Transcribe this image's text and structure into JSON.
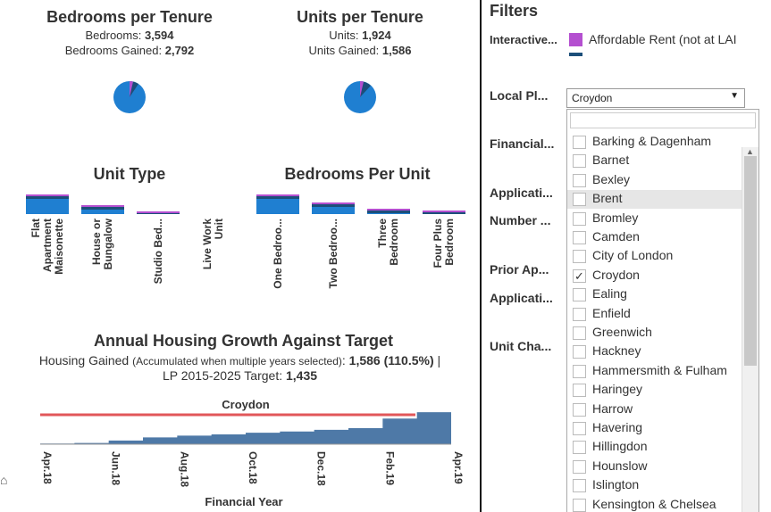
{
  "tenure": {
    "bed_title": "Bedrooms per Tenure",
    "bed_label": "Bedrooms: ",
    "bed_value": "3,594",
    "bed_gained_label": "Bedrooms Gained: ",
    "bed_gained_value": "2,792",
    "units_title": "Units per Tenure",
    "units_label": "Units: ",
    "units_value": "1,924",
    "units_gained_label": "Units Gained: ",
    "units_gained_value": "1,586"
  },
  "unit_type": {
    "title": "Unit Type",
    "categories": [
      "Flat Apartment Maisonette",
      "House or Bungalow",
      "Studio Bed...",
      "Live Work Unit"
    ],
    "labels": [
      [
        "Flat",
        "Apartment",
        "Maisonette"
      ],
      [
        "House or",
        "Bungalow"
      ],
      [
        "Studio Bed..."
      ],
      [
        "Live Work",
        "Unit"
      ]
    ],
    "values": [
      1.0,
      0.45,
      0.12,
      0
    ]
  },
  "bedrooms_per_unit": {
    "title": "Bedrooms Per Unit",
    "labels": [
      [
        "One Bedroo..."
      ],
      [
        "Two Bedroo..."
      ],
      [
        "Three",
        "Bedroom"
      ],
      [
        "Four Plus",
        "Bedroom"
      ]
    ],
    "values": [
      1.0,
      0.6,
      0.25,
      0.18
    ]
  },
  "growth": {
    "title": "Annual Housing Growth Against Target",
    "line1_a": "Housing Gained ",
    "line1_b": "(Accumulated when multiple years selected)",
    "line1_c": ": ",
    "line1_value": "1,586 (110.5%)",
    "line1_end": " |",
    "line2_label": "LP 2015-2025 Target: ",
    "line2_value": "1,435",
    "chart_label": "Croydon",
    "xlabel": "Financial Year",
    "ticks": [
      "Apr.18",
      "Jun.18",
      "Aug.18",
      "Oct.18",
      "Dec.18",
      "Feb.19",
      "Apr.19"
    ]
  },
  "chart_data": {
    "type": "area",
    "x": [
      "Apr.18",
      "May.18",
      "Jun.18",
      "Jul.18",
      "Aug.18",
      "Sep.18",
      "Oct.18",
      "Nov.18",
      "Dec.18",
      "Jan.19",
      "Feb.19",
      "Mar.19",
      "Apr.19"
    ],
    "series": [
      {
        "values": [
          30,
          60,
          180,
          330,
          420,
          480,
          560,
          620,
          700,
          780,
          1250,
          1560,
          1586
        ]
      }
    ],
    "target": 1435,
    "xlabel": "Financial Year",
    "title": "Croydon",
    "colors": {
      "area": "#4e79a7",
      "target": "#e15759"
    }
  },
  "filters": {
    "title": "Filters",
    "interactive_label": "Interactive...",
    "legend_item": "Affordable Rent (not at LAI",
    "legend_color": "#b44fd0",
    "local_plan_label": "Local Pl...",
    "local_plan_value": "Croydon",
    "financial_label": "Financial...",
    "application_label": "Applicati...",
    "number_label": "Number ...",
    "prior_label": "Prior Ap...",
    "application2_label": "Applicati...",
    "unit_change_label": "Unit Cha...",
    "boroughs": [
      {
        "name": "Barking & Dagenham",
        "checked": false
      },
      {
        "name": "Barnet",
        "checked": false
      },
      {
        "name": "Bexley",
        "checked": false
      },
      {
        "name": "Brent",
        "checked": false,
        "highlight": true
      },
      {
        "name": "Bromley",
        "checked": false
      },
      {
        "name": "Camden",
        "checked": false
      },
      {
        "name": "City of London",
        "checked": false
      },
      {
        "name": "Croydon",
        "checked": true
      },
      {
        "name": "Ealing",
        "checked": false
      },
      {
        "name": "Enfield",
        "checked": false
      },
      {
        "name": "Greenwich",
        "checked": false
      },
      {
        "name": "Hackney",
        "checked": false
      },
      {
        "name": "Hammersmith & Fulham",
        "checked": false
      },
      {
        "name": "Haringey",
        "checked": false
      },
      {
        "name": "Harrow",
        "checked": false
      },
      {
        "name": "Havering",
        "checked": false
      },
      {
        "name": "Hillingdon",
        "checked": false
      },
      {
        "name": "Hounslow",
        "checked": false
      },
      {
        "name": "Islington",
        "checked": false
      },
      {
        "name": "Kensington & Chelsea",
        "checked": false
      }
    ]
  }
}
